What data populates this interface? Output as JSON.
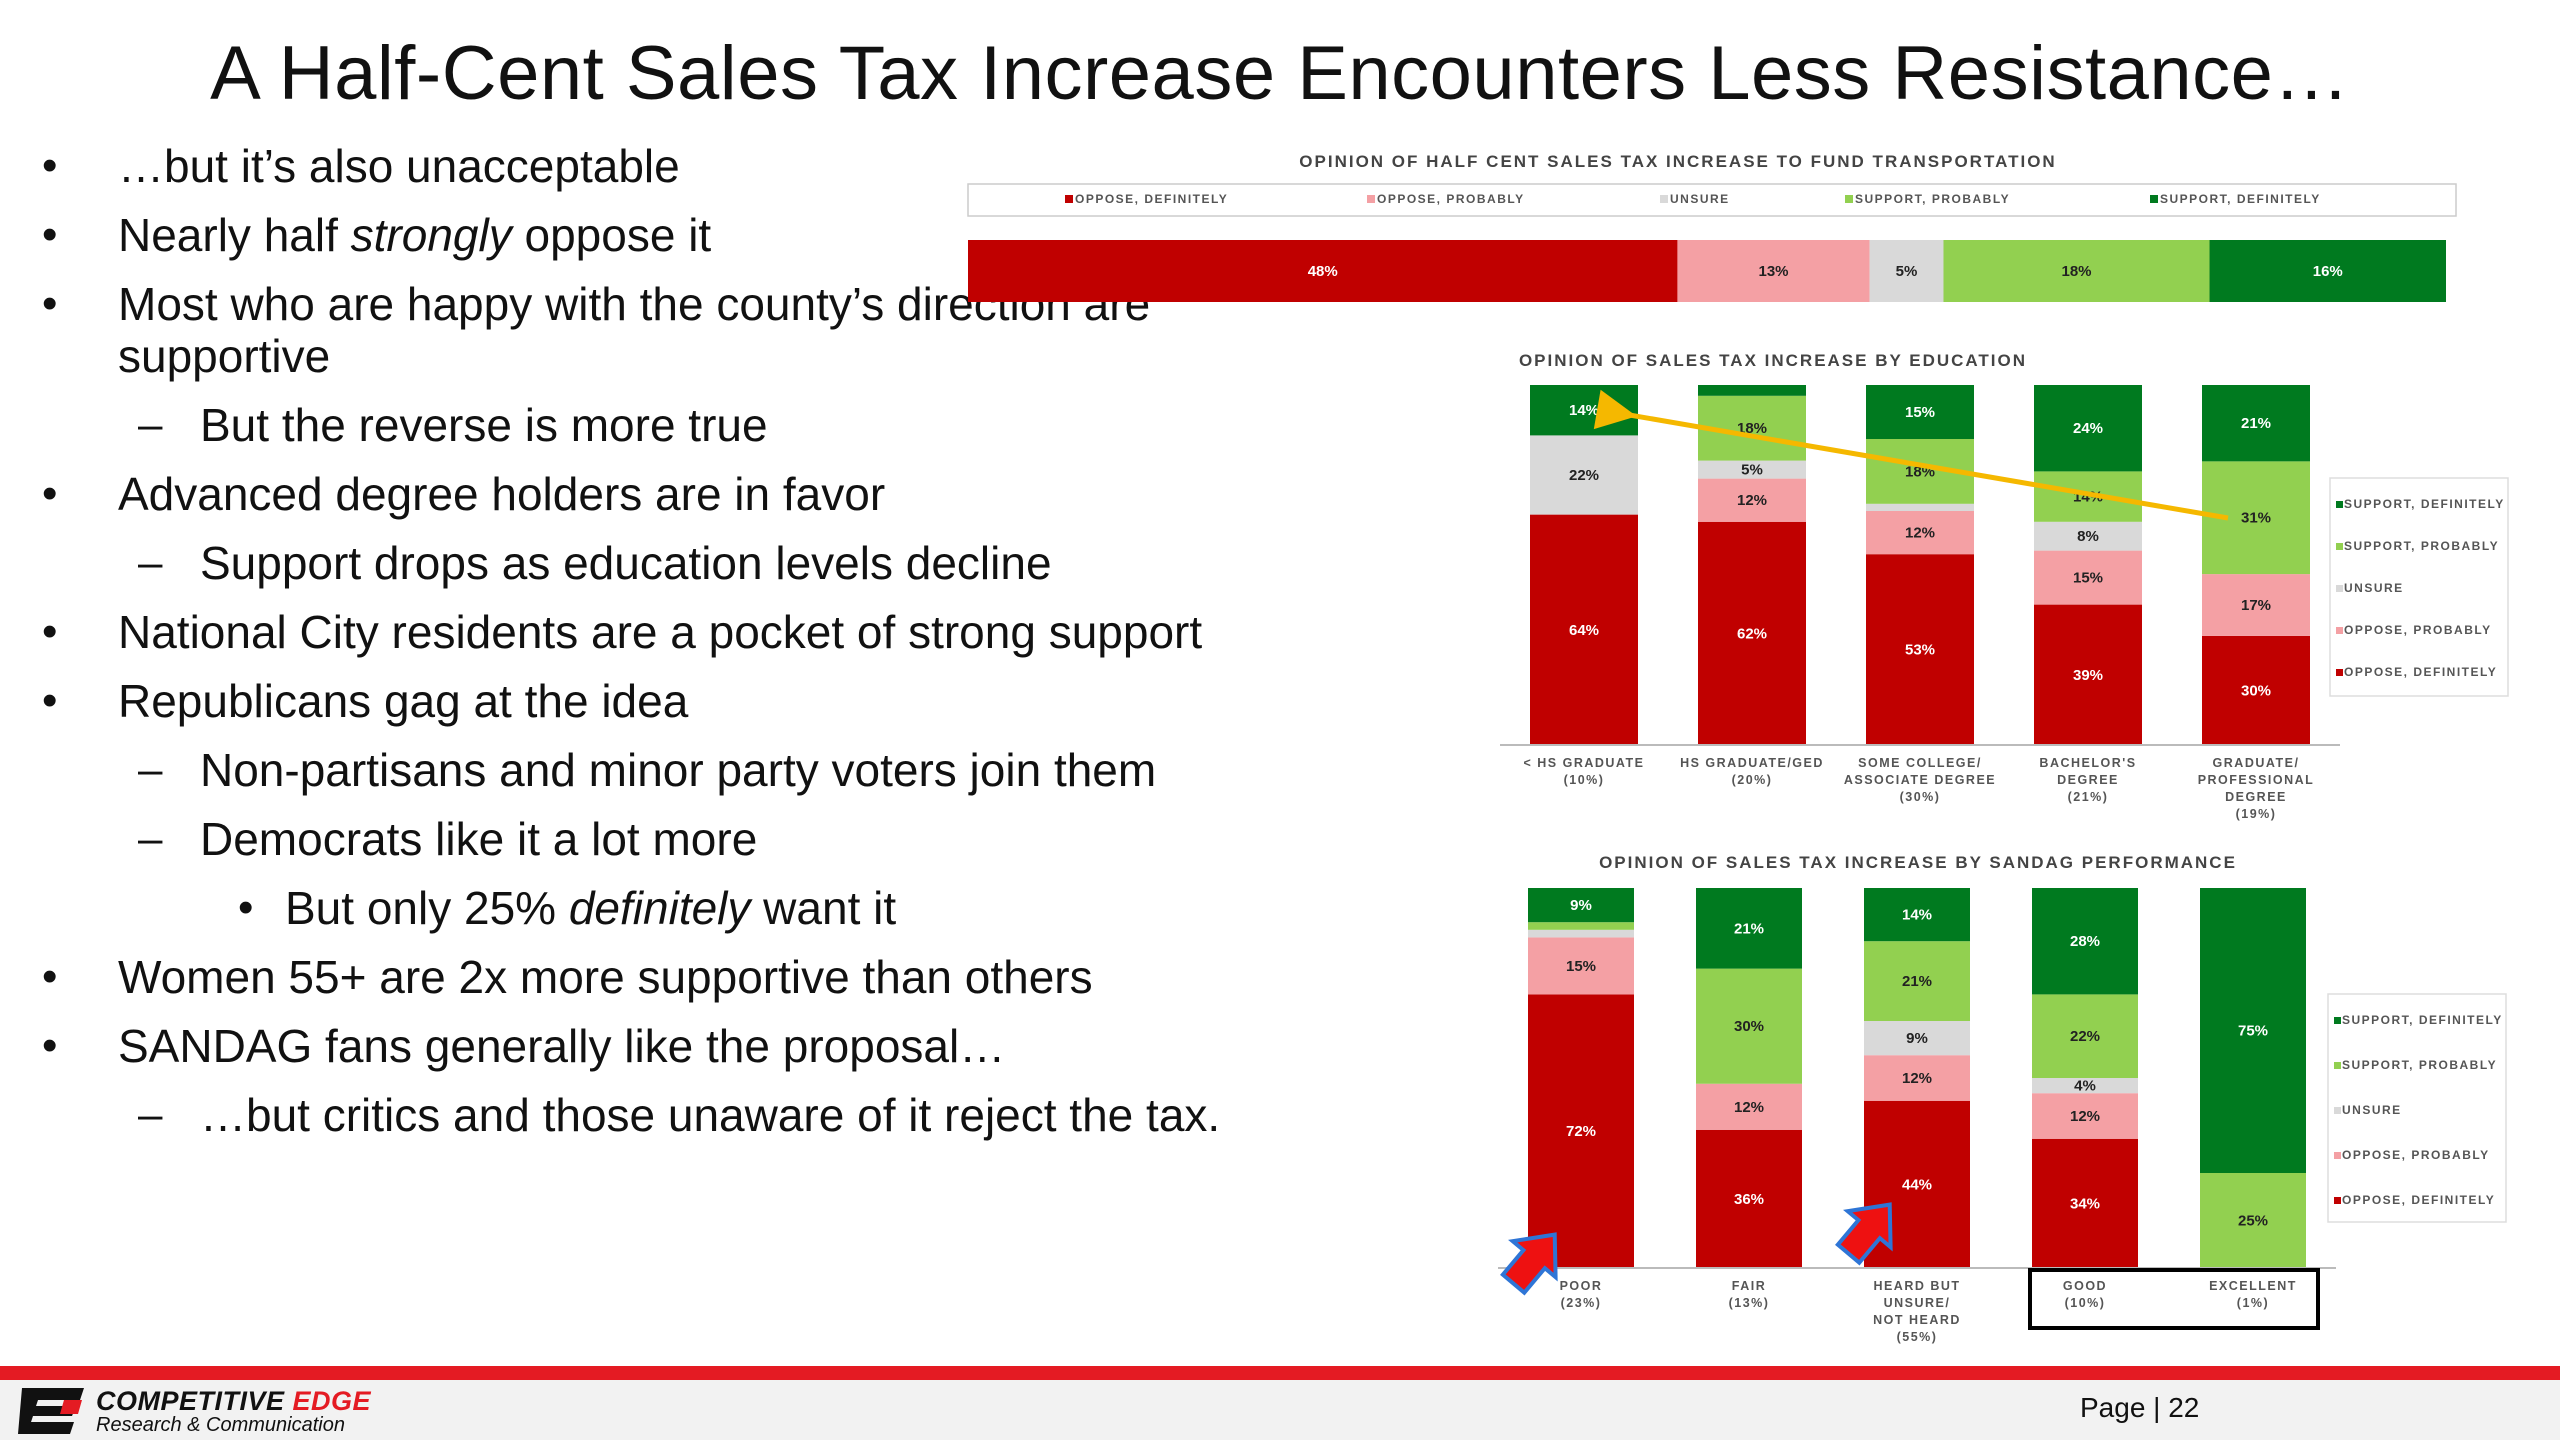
{
  "title": "A Half-Cent Sales Tax Increase Encounters Less Resistance…",
  "bullets": [
    {
      "level": 1,
      "marker": "•",
      "parts": [
        {
          "t": "…but it’s also unacceptable"
        }
      ]
    },
    {
      "level": 1,
      "marker": "•",
      "parts": [
        {
          "t": "Nearly half "
        },
        {
          "t": "strongly",
          "em": true
        },
        {
          "t": " oppose it"
        }
      ]
    },
    {
      "level": 1,
      "marker": "•",
      "parts": [
        {
          "t": "Most who are happy with the county’s direction are supportive"
        }
      ]
    },
    {
      "level": 2,
      "marker": "–",
      "parts": [
        {
          "t": "But the reverse is more true"
        }
      ]
    },
    {
      "level": 1,
      "marker": "•",
      "parts": [
        {
          "t": "Advanced degree holders are in favor"
        }
      ]
    },
    {
      "level": 2,
      "marker": "–",
      "parts": [
        {
          "t": "Support drops as education levels decline"
        }
      ]
    },
    {
      "level": 1,
      "marker": "•",
      "parts": [
        {
          "t": "National City residents are a pocket of strong support"
        }
      ]
    },
    {
      "level": 1,
      "marker": "•",
      "parts": [
        {
          "t": "Republicans gag at the idea"
        }
      ]
    },
    {
      "level": 2,
      "marker": "–",
      "parts": [
        {
          "t": "Non-partisans and minor party voters join them"
        }
      ]
    },
    {
      "level": 2,
      "marker": "–",
      "parts": [
        {
          "t": "Democrats like it a lot more"
        }
      ]
    },
    {
      "level": 3,
      "marker": "•",
      "parts": [
        {
          "t": "But only 25% "
        },
        {
          "t": "definitely",
          "em": true
        },
        {
          "t": " want it"
        }
      ]
    },
    {
      "level": 1,
      "marker": "•",
      "parts": [
        {
          "t": "Women 55+ are 2x more supportive than others"
        }
      ]
    },
    {
      "level": 1,
      "marker": "•",
      "parts": [
        {
          "t": "SANDAG fans generally like the proposal…"
        }
      ]
    },
    {
      "level": 2,
      "marker": "–",
      "parts": [
        {
          "t": "…but critics and those unaware of it reject the tax."
        }
      ]
    }
  ],
  "colors": {
    "oppose_definitely": "#c00000",
    "oppose_probably": "#f4a0a4",
    "unsure": "#d9d9d9",
    "support_probably": "#92d050",
    "support_definitely": "#007a1f",
    "arrow_yellow": "#f5b800",
    "arrow_red": "#ee1111",
    "arrow_blue": "#2e75d6",
    "brand_red": "#e41b23"
  },
  "chart_data": [
    {
      "type": "bar",
      "orientation": "horizontal-stacked",
      "title": "OPINION OF HALF CENT SALES TAX INCREASE TO FUND TRANSPORTATION",
      "legend": [
        "OPPOSE, DEFINITELY",
        "OPPOSE, PROBABLY",
        "UNSURE",
        "SUPPORT, PROBABLY",
        "SUPPORT, DEFINITELY"
      ],
      "legend_position": "top",
      "values": [
        48,
        13,
        5,
        18,
        16
      ],
      "labels": [
        "48%",
        "13%",
        "5%",
        "18%",
        "16%"
      ]
    },
    {
      "type": "bar",
      "orientation": "vertical-stacked",
      "title": "OPINION OF SALES TAX INCREASE BY EDUCATION",
      "categories": [
        [
          "< HS GRADUATE",
          "(10%)"
        ],
        [
          "HS GRADUATE/GED",
          "(20%)"
        ],
        [
          "SOME COLLEGE/",
          "ASSOCIATE DEGREE",
          "(30%)"
        ],
        [
          "BACHELOR'S",
          "DEGREE",
          "(21%)"
        ],
        [
          "GRADUATE/",
          "PROFESSIONAL",
          "DEGREE",
          "(19%)"
        ]
      ],
      "legend": [
        "SUPPORT, DEFINITELY",
        "SUPPORT, PROBABLY",
        "UNSURE",
        "OPPOSE, PROBABLY",
        "OPPOSE, DEFINITELY"
      ],
      "legend_position": "right",
      "series": [
        {
          "name": "OPPOSE, DEFINITELY",
          "values": [
            64,
            62,
            53,
            39,
            30
          ],
          "labels": [
            "64%",
            "62%",
            "53%",
            "39%",
            "30%"
          ]
        },
        {
          "name": "OPPOSE, PROBABLY",
          "values": [
            0,
            12,
            12,
            15,
            17
          ],
          "labels": [
            "",
            "12%",
            "12%",
            "15%",
            "17%"
          ]
        },
        {
          "name": "UNSURE",
          "values": [
            22,
            5,
            2,
            8,
            0
          ],
          "labels": [
            "22%",
            "5%",
            "",
            "8%",
            ""
          ]
        },
        {
          "name": "SUPPORT, PROBABLY",
          "values": [
            0,
            18,
            18,
            14,
            31
          ],
          "labels": [
            "",
            "18%",
            "18%",
            "14%",
            "31%"
          ]
        },
        {
          "name": "SUPPORT, DEFINITELY",
          "values": [
            14,
            3,
            15,
            24,
            21
          ],
          "labels": [
            "14%",
            "",
            "15%",
            "24%",
            "21%"
          ]
        }
      ]
    },
    {
      "type": "bar",
      "orientation": "vertical-stacked",
      "title": "OPINION OF SALES TAX INCREASE BY SANDAG PERFORMANCE",
      "categories": [
        [
          "POOR",
          "(23%)"
        ],
        [
          "FAIR",
          "(13%)"
        ],
        [
          "HEARD BUT",
          "UNSURE/",
          "NOT HEARD",
          "(55%)"
        ],
        [
          "GOOD",
          "(10%)"
        ],
        [
          "EXCELLENT",
          "(1%)"
        ]
      ],
      "legend": [
        "SUPPORT, DEFINITELY",
        "SUPPORT, PROBABLY",
        "UNSURE",
        "OPPOSE, PROBABLY",
        "OPPOSE, DEFINITELY"
      ],
      "legend_position": "right",
      "series": [
        {
          "name": "OPPOSE, DEFINITELY",
          "values": [
            72,
            36,
            44,
            34,
            0
          ],
          "labels": [
            "72%",
            "36%",
            "44%",
            "34%",
            ""
          ]
        },
        {
          "name": "OPPOSE, PROBABLY",
          "values": [
            15,
            12,
            12,
            12,
            0
          ],
          "labels": [
            "15%",
            "12%",
            "12%",
            "12%",
            ""
          ]
        },
        {
          "name": "UNSURE",
          "values": [
            2,
            0,
            9,
            4,
            0
          ],
          "labels": [
            "",
            "",
            "9%",
            "4%",
            ""
          ]
        },
        {
          "name": "SUPPORT, PROBABLY",
          "values": [
            2,
            30,
            21,
            22,
            25
          ],
          "labels": [
            "",
            "30%",
            "21%",
            "22%",
            "25%"
          ]
        },
        {
          "name": "SUPPORT, DEFINITELY",
          "values": [
            9,
            21,
            14,
            28,
            75
          ],
          "labels": [
            "9%",
            "21%",
            "14%",
            "28%",
            "75%"
          ]
        }
      ]
    }
  ],
  "footer": {
    "logo_word_1": "COMPETITIVE ",
    "logo_word_2": "EDGE",
    "logo_sub": "Research & Communication",
    "page": "Page | 22"
  }
}
